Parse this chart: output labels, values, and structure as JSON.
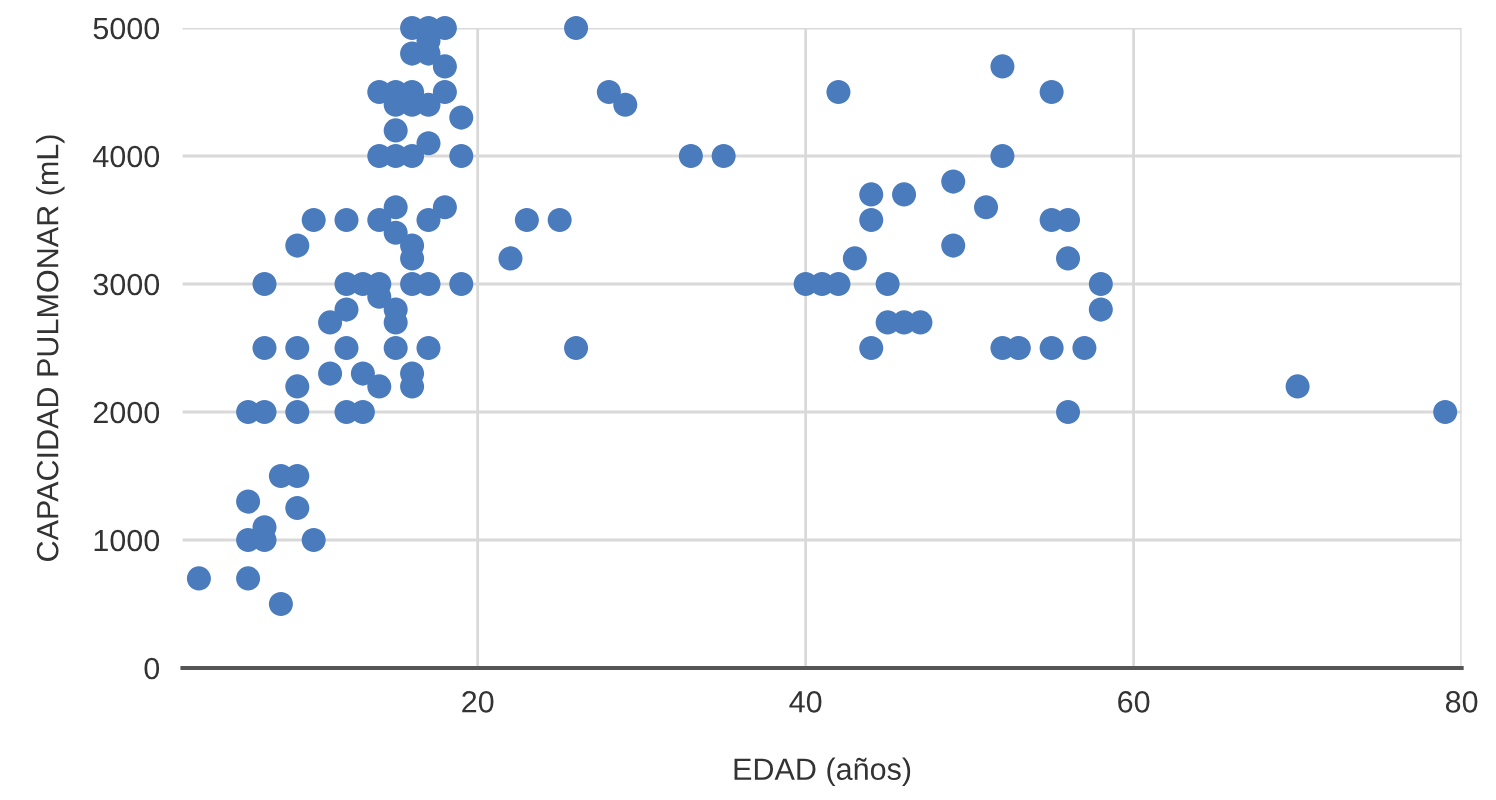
{
  "chart_data": {
    "type": "scatter",
    "xlabel": "EDAD (años)",
    "ylabel": "CAPACIDAD PULMONAR (mL)",
    "xlim": [
      2,
      80
    ],
    "ylim": [
      0,
      5000
    ],
    "xticks": [
      20,
      40,
      60,
      80
    ],
    "yticks": [
      0,
      1000,
      2000,
      3000,
      4000,
      5000
    ],
    "grid": true,
    "marker": "circle",
    "series": [
      {
        "color": "#4a7bbd",
        "x": [
          3,
          6,
          8,
          6,
          7,
          7,
          6,
          8,
          9,
          9,
          10,
          6,
          7,
          9,
          9,
          7,
          9,
          7,
          9,
          10,
          12,
          12,
          13,
          11,
          13,
          14,
          12,
          11,
          12,
          12,
          13,
          14,
          14,
          15,
          15,
          15,
          16,
          16,
          17,
          16,
          17,
          19,
          14,
          15,
          15,
          16,
          16,
          17,
          18,
          14,
          15,
          16,
          17,
          19,
          15,
          19,
          14,
          15,
          15,
          16,
          17,
          18,
          16,
          16,
          17,
          18,
          16,
          17,
          18,
          17,
          26,
          28,
          29,
          33,
          35,
          23,
          25,
          22,
          26,
          40,
          41,
          42,
          42,
          52,
          55,
          52,
          49,
          44,
          46,
          51,
          44,
          55,
          56,
          49,
          43,
          56,
          45,
          58,
          58,
          45,
          46,
          47,
          44,
          52,
          53,
          55,
          57,
          56,
          70,
          79
        ],
        "values": [
          700,
          700,
          500,
          1000,
          1000,
          1100,
          1300,
          1500,
          1500,
          1250,
          1000,
          2000,
          2000,
          2000,
          2200,
          2500,
          2500,
          3000,
          3300,
          3500,
          3500,
          2000,
          2000,
          2300,
          2300,
          2200,
          2500,
          2700,
          2800,
          3000,
          3000,
          3000,
          2900,
          2800,
          2700,
          2500,
          2300,
          2200,
          2500,
          3000,
          3000,
          3000,
          3500,
          3600,
          3400,
          3300,
          3200,
          3500,
          3600,
          4000,
          4000,
          4000,
          4100,
          4000,
          4200,
          4300,
          4500,
          4500,
          4400,
          4500,
          4400,
          4500,
          4400,
          4800,
          4800,
          4700,
          5000,
          5000,
          5000,
          4900,
          5000,
          4500,
          4400,
          4000,
          4000,
          3500,
          3500,
          3200,
          2500,
          3000,
          3000,
          3000,
          4500,
          4700,
          4500,
          4000,
          3800,
          3700,
          3700,
          3600,
          3500,
          3500,
          3500,
          3300,
          3200,
          3200,
          3000,
          3000,
          2800,
          2700,
          2700,
          2700,
          2500,
          2500,
          2500,
          2500,
          2500,
          2000,
          2200,
          2000
        ]
      }
    ]
  }
}
